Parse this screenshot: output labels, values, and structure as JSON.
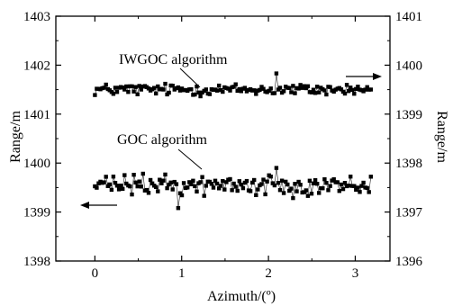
{
  "chart_data": {
    "type": "scatter",
    "title": "",
    "xlabel": "Azimuth/(º)",
    "ylabel_left": "Range/m",
    "ylabel_right": "Range/m",
    "xlim": [
      -0.45,
      3.4
    ],
    "xticks": [
      0,
      1,
      2,
      3
    ],
    "ylim_left": [
      1398,
      1403
    ],
    "yticks_left": [
      1398,
      1399,
      1400,
      1401,
      1402,
      1403
    ],
    "ylim_right": [
      1396,
      1401
    ],
    "yticks_right": [
      1396,
      1397,
      1398,
      1399,
      1400,
      1401
    ],
    "marker": "square",
    "grid": false,
    "legend": "none",
    "series": [
      {
        "name": "IWGOC algorithm",
        "axis": "right",
        "x_range": [
          0.0,
          3.18
        ],
        "approx_mean": 1399.5,
        "approx_spread": 0.12,
        "max_outlier": 1399.83
      },
      {
        "name": "GOC algorithm",
        "axis": "left",
        "x_range": [
          0.0,
          3.18
        ],
        "approx_mean": 1399.55,
        "approx_spread": 0.2,
        "min_outlier": 1399.08,
        "max_outlier": 1399.9
      }
    ],
    "annotations": [
      {
        "text": "IWGOC algorithm",
        "points_to": "IWGOC series"
      },
      {
        "text": "GOC algorithm",
        "points_to": "GOC series"
      },
      {
        "text": "→",
        "meaning": "IWGOC series read on right axis"
      },
      {
        "text": "←",
        "meaning": "GOC series read on left axis"
      }
    ]
  }
}
